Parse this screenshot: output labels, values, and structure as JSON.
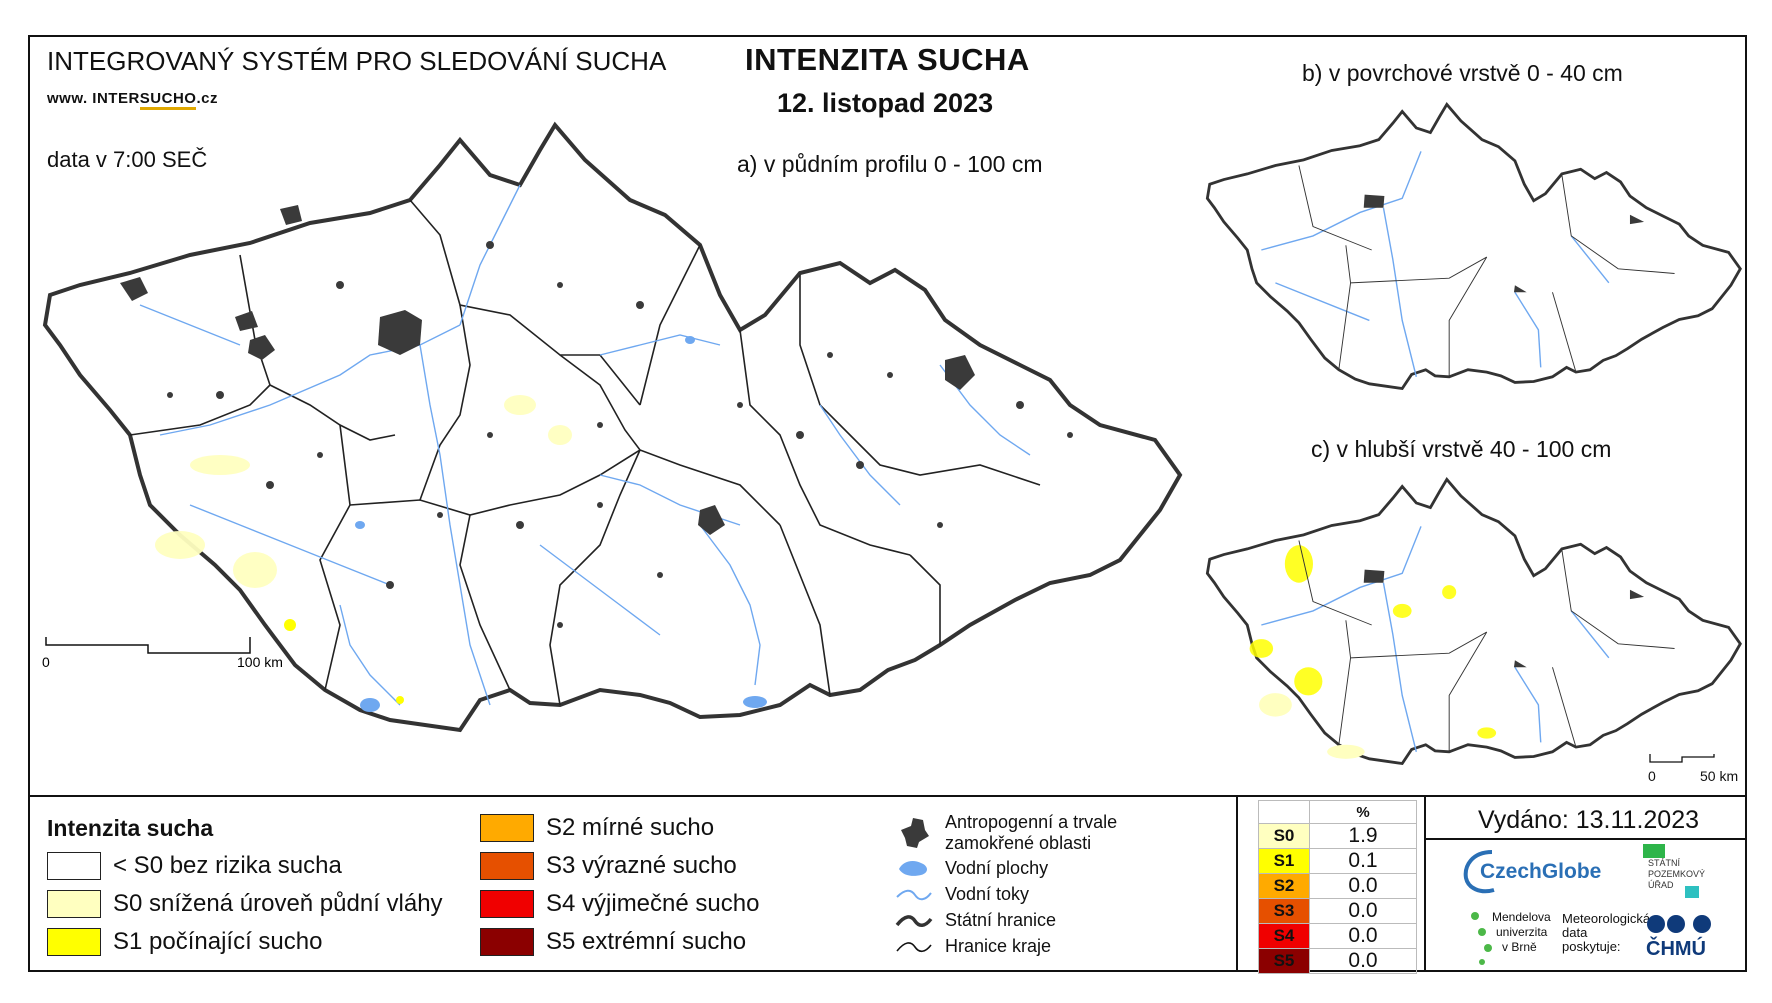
{
  "header": {
    "system_title": "INTEGROVANÝ SYSTÉM PRO SLEDOVÁNÍ SUCHA",
    "website_prefix": "www. INTER",
    "website_mid": "SUCHO",
    "website_suffix": ".cz",
    "data_time": "data v 7:00 SEČ",
    "main_title": "INTENZITA SUCHA",
    "main_date": "12. listopad 2023"
  },
  "maps": {
    "a_label": "a) v půdním profilu 0 - 100 cm",
    "b_label": "b) v povrchové vrstvě 0 - 40 cm",
    "c_label": "c) v hlubší vrstvě 40 - 100 cm",
    "scale_main": {
      "start": "0",
      "end": "100 km"
    },
    "scale_small": {
      "start": "0",
      "end": "50 km"
    }
  },
  "legend": {
    "title": "Intenzita sucha",
    "classes": [
      {
        "label": "< S0 bez rizika sucha",
        "color": "#ffffff"
      },
      {
        "label": "S0 snížená úroveň půdní vláhy",
        "color": "#ffffc0"
      },
      {
        "label": "S1 počínající sucho",
        "color": "#ffff00"
      },
      {
        "label": "S2 mírné sucho",
        "color": "#ffaa00"
      },
      {
        "label": "S3 výrazné sucho",
        "color": "#e65000"
      },
      {
        "label": "S4 výjimečné sucho",
        "color": "#f00000"
      },
      {
        "label": "S5 extrémní sucho",
        "color": "#8b0000"
      }
    ],
    "symbols": {
      "anthropogenic_line1": "Antropogenní a trvale",
      "anthropogenic_line2": "zamokřené oblasti",
      "water_areas": "Vodní plochy",
      "water_streams": "Vodní toky",
      "state_border": "Státní hranice",
      "region_border": "Hranice kraje"
    }
  },
  "percent_table": {
    "header": "%",
    "rows": [
      {
        "cls": "S0",
        "value": "1.9",
        "color": "#ffffc0"
      },
      {
        "cls": "S1",
        "value": "0.1",
        "color": "#ffff00"
      },
      {
        "cls": "S2",
        "value": "0.0",
        "color": "#ffaa00"
      },
      {
        "cls": "S3",
        "value": "0.0",
        "color": "#e65000"
      },
      {
        "cls": "S4",
        "value": "0.0",
        "color": "#f00000"
      },
      {
        "cls": "S5",
        "value": "0.0",
        "color": "#8b0000"
      }
    ]
  },
  "issued": "Vydáno: 13.11.2023",
  "logos": {
    "czechglobe": "CzechGlobe",
    "spu_line1": "STÁTNÍ",
    "spu_line2": "POZEMKOVÝ",
    "spu_line3": "ÚŘAD",
    "mendel_line1": "Mendelova",
    "mendel_line2": "univerzita",
    "mendel_line3": "v Brně",
    "meteo_line1": "Meteorologická",
    "meteo_line2": "data",
    "meteo_line3": "poskytuje:",
    "chmu": "ČHMÚ"
  }
}
